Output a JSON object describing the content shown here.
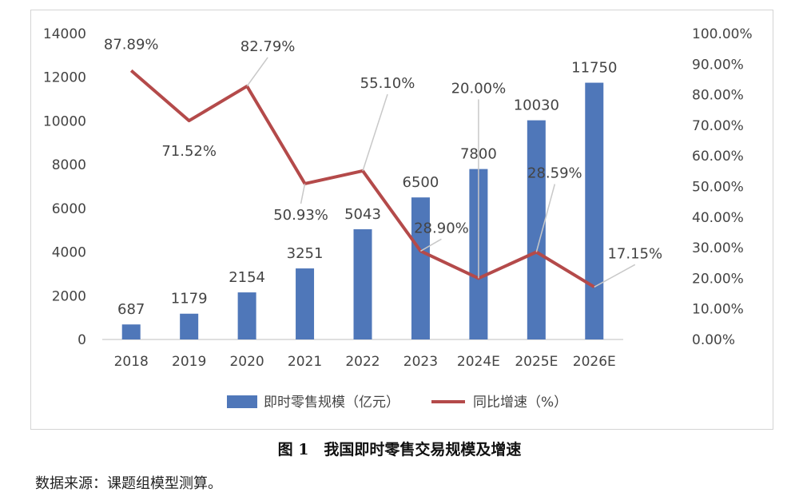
{
  "chart_data": {
    "type": "bar+line",
    "categories": [
      "2018",
      "2019",
      "2020",
      "2021",
      "2022",
      "2023",
      "2024E",
      "2025E",
      "2026E"
    ],
    "series": [
      {
        "name": "即时零售规模（亿元）",
        "type": "bar",
        "axis": "left",
        "values": [
          687,
          1179,
          2154,
          3251,
          5043,
          6500,
          7800,
          10030,
          11750
        ],
        "labels": [
          "687",
          "1179",
          "2154",
          "3251",
          "5043",
          "6500",
          "7800",
          "10030",
          "11750"
        ],
        "color": "#4f77b9"
      },
      {
        "name": "同比增速（%）",
        "type": "line",
        "axis": "right",
        "values": [
          87.89,
          71.52,
          82.79,
          50.93,
          55.1,
          28.9,
          20.0,
          28.59,
          17.15
        ],
        "labels": [
          "87.89%",
          "71.52%",
          "82.79%",
          "50.93%",
          "55.10%",
          "28.90%",
          "20.00%",
          "28.59%",
          "17.15%"
        ],
        "color": "#b44a4a"
      }
    ],
    "y_left": {
      "lim": [
        0,
        14000
      ],
      "ticks": [
        0,
        2000,
        4000,
        6000,
        8000,
        10000,
        12000,
        14000
      ],
      "tick_labels": [
        "0",
        "2000",
        "4000",
        "6000",
        "8000",
        "10000",
        "12000",
        "14000"
      ]
    },
    "y_right": {
      "lim": [
        0,
        100
      ],
      "ticks": [
        0,
        10,
        20,
        30,
        40,
        50,
        60,
        70,
        80,
        90,
        100
      ],
      "tick_labels": [
        "0.00%",
        "10.00%",
        "20.00%",
        "30.00%",
        "40.00%",
        "50.00%",
        "60.00%",
        "70.00%",
        "80.00%",
        "90.00%",
        "100.00%"
      ]
    },
    "grid": false,
    "legend": "bottom",
    "label_color": "#444444",
    "axis_color": "#bfbfbf"
  },
  "caption": "图 1　我国即时零售交易规模及增速",
  "source": "数据来源：课题组模型测算。"
}
